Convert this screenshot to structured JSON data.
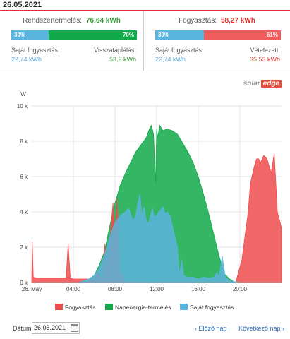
{
  "header": {
    "date": "26.05.2021"
  },
  "production": {
    "title": "Rendszertermelés:",
    "value": "76,64 kWh",
    "bar": {
      "left_pct": 30,
      "left_label": "30%",
      "right_pct": 70,
      "right_label": "70%"
    },
    "self_label": "Saját fogyasztás:",
    "self_value": "22,74 kWh",
    "export_label": "Visszatáplálás:",
    "export_value": "53,9 kWh"
  },
  "consumption": {
    "title": "Fogyasztás:",
    "value": "58,27 kWh",
    "bar": {
      "left_pct": 39,
      "left_label": "39%",
      "right_pct": 61,
      "right_label": "61%"
    },
    "self_label": "Saját fogyasztás:",
    "self_value": "22,74 kWh",
    "import_label": "Vételezett:",
    "import_value": "35,53 kWh"
  },
  "logo": {
    "text": "solar",
    "edge": "edge"
  },
  "colors": {
    "consumption": "#ee4c4c",
    "production": "#12a94a",
    "self": "#5bb4dd",
    "blue_text": "#5aa9e0",
    "green_text": "#3d9a3d",
    "red_text": "#e0312d"
  },
  "chart_data": {
    "type": "area",
    "ylabel": "W",
    "ylim": [
      0,
      10000
    ],
    "yticks": [
      "0 k",
      "2 k",
      "4 k",
      "6 k",
      "8 k",
      "10 k"
    ],
    "xticks": [
      "26. May",
      "04:00",
      "08:00",
      "12:00",
      "16:00",
      "20:00"
    ],
    "xlim": [
      0,
      24
    ],
    "series": [
      {
        "name": "Fogyasztás",
        "color": "#ee4c4c",
        "x": [
          0,
          0.05,
          0.15,
          0.5,
          1,
          2,
          3,
          3.3,
          3.5,
          3.7,
          4,
          5,
          6,
          6.4,
          6.6,
          6.8,
          7,
          7.2,
          7.4,
          7.6,
          7.8,
          8,
          8.2,
          8.4,
          9,
          19.5,
          19.6,
          20.2,
          20.5,
          20.8,
          21,
          21.2,
          21.4,
          21.6,
          21.8,
          22,
          22.3,
          22.6,
          23,
          23.3,
          23.6,
          24
        ],
        "values": [
          0,
          2300,
          300,
          250,
          250,
          250,
          250,
          250,
          2200,
          250,
          200,
          200,
          200,
          700,
          300,
          200,
          2200,
          600,
          1800,
          3000,
          4500,
          2800,
          4800,
          800,
          0,
          0,
          0,
          1300,
          2700,
          4000,
          5600,
          6100,
          6600,
          7000,
          7000,
          6800,
          7200,
          7000,
          6200,
          7300,
          4000,
          3100
        ]
      },
      {
        "name": "Napenergia-termelés",
        "color": "#12a94a",
        "x": [
          0,
          4.5,
          5,
          5.5,
          6,
          6.5,
          7,
          7.5,
          8,
          8.5,
          9,
          9.5,
          10,
          10.5,
          11,
          11.3,
          11.5,
          11.7,
          11.9,
          12,
          12.1,
          12.3,
          12.6,
          13,
          13.5,
          14,
          14.5,
          15,
          15.5,
          16,
          16.5,
          17,
          17.5,
          18,
          18.5,
          19,
          19.5,
          20,
          24
        ],
        "values": [
          0,
          0,
          100,
          200,
          400,
          1000,
          1800,
          3200,
          4500,
          5500,
          6200,
          6800,
          7400,
          7800,
          8200,
          8700,
          8900,
          8400,
          5600,
          8700,
          8200,
          8900,
          8600,
          8700,
          8600,
          8400,
          7900,
          7400,
          6800,
          6000,
          5000,
          3900,
          2700,
          1500,
          500,
          200,
          30,
          0,
          0
        ]
      },
      {
        "name": "Saját fogyasztás",
        "color": "#5bb4dd",
        "x": [
          0,
          4.5,
          5,
          5.5,
          6,
          6.5,
          7,
          7.5,
          8,
          8.5,
          9,
          9.3,
          9.5,
          9.7,
          10,
          10.2,
          10.4,
          10.6,
          10.8,
          11,
          11.2,
          11.4,
          11.6,
          11.8,
          12,
          12.2,
          12.4,
          12.6,
          12.8,
          13,
          13.3,
          13.6,
          14,
          14.2,
          14.4,
          14.6,
          15,
          15.5,
          16,
          16.5,
          17,
          17.5,
          17.8,
          18,
          18.3,
          18.6,
          19,
          20,
          24
        ],
        "values": [
          0,
          0,
          100,
          200,
          400,
          800,
          1600,
          2600,
          3400,
          3800,
          4000,
          4200,
          3900,
          3500,
          3800,
          4500,
          5000,
          3800,
          4300,
          3500,
          3300,
          3800,
          4200,
          3700,
          3800,
          4000,
          4100,
          4300,
          3900,
          4000,
          3800,
          3000,
          2000,
          400,
          1300,
          400,
          300,
          300,
          200,
          300,
          250,
          300,
          600,
          300,
          1500,
          300,
          100,
          0,
          0
        ]
      }
    ],
    "legend": {
      "position": "bottom",
      "items": [
        "Fogyasztás",
        "Napenergia-termelés",
        "Saját fogyasztás"
      ]
    }
  },
  "footer": {
    "date_label": "Dátum:",
    "date_value": "26.05.2021",
    "prev": "Előző nap",
    "next": "Következő nap"
  }
}
